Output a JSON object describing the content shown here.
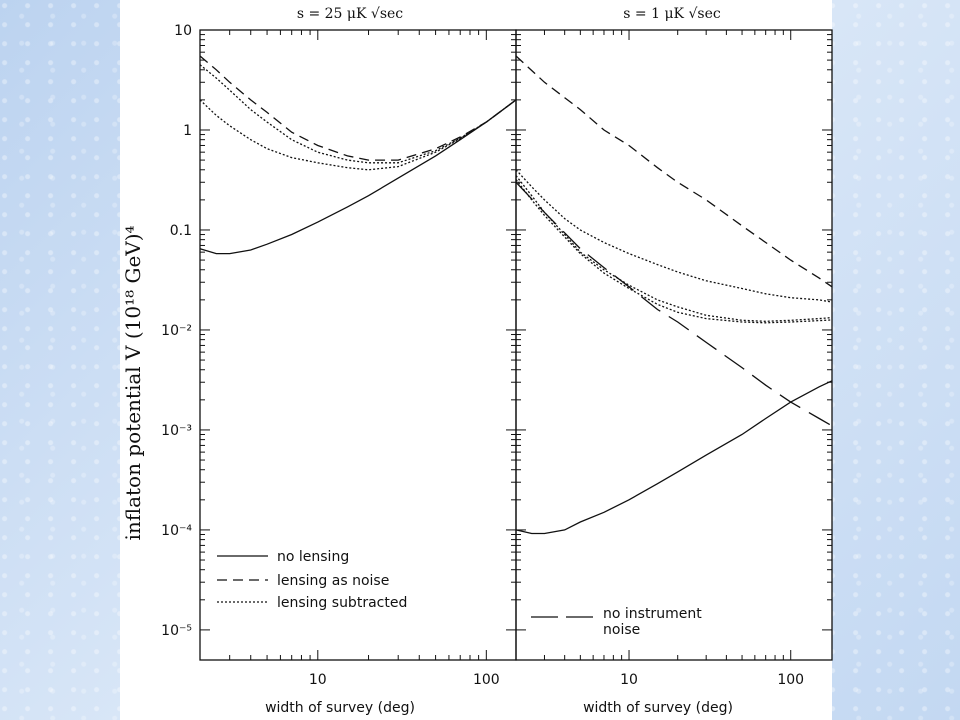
{
  "chart_data": [
    {
      "type": "line",
      "title": "s = 25 μK √sec",
      "xlabel": "width of survey (deg)",
      "ylabel": "inflaton potential V (10¹⁸ GeV)⁴",
      "xscale": "log",
      "yscale": "log",
      "xlim": [
        2,
        150
      ],
      "ylim": [
        5e-06,
        10
      ],
      "x_ticklabels": [
        "10",
        "100"
      ],
      "y_ticklabels": [
        "10",
        "1",
        "0.1",
        "10⁻²",
        "10⁻³",
        "10⁻⁴",
        "10⁻⁵"
      ],
      "legend": {
        "placement": "bottom-left",
        "entries": [
          "no lensing",
          "lensing as noise",
          "lensing subtracted"
        ]
      },
      "series": [
        {
          "name": "no lensing",
          "style": "solid",
          "x": [
            2,
            2.5,
            3,
            4,
            5,
            7,
            10,
            15,
            20,
            30,
            50,
            70,
            100,
            150
          ],
          "y": [
            0.065,
            0.058,
            0.058,
            0.063,
            0.072,
            0.09,
            0.12,
            0.17,
            0.22,
            0.33,
            0.55,
            0.8,
            1.2,
            2.0
          ]
        },
        {
          "name": "lensing as noise",
          "style": "dashed",
          "x": [
            2,
            2.5,
            3,
            4,
            5,
            7,
            10,
            15,
            20,
            30,
            50,
            70,
            100,
            150
          ],
          "y": [
            5.5,
            4.0,
            3.0,
            2.0,
            1.5,
            0.95,
            0.7,
            0.55,
            0.5,
            0.5,
            0.65,
            0.85,
            1.2,
            2.0
          ]
        },
        {
          "name": "lensing subtracted",
          "style": "dotted",
          "x": [
            2,
            2.5,
            3,
            4,
            5,
            7,
            10,
            15,
            20,
            30,
            50,
            70,
            100,
            150
          ],
          "y": [
            4.5,
            3.3,
            2.5,
            1.6,
            1.2,
            0.8,
            0.6,
            0.5,
            0.47,
            0.47,
            0.62,
            0.83,
            1.2,
            2.0
          ]
        },
        {
          "name": "lensing subtracted",
          "style": "dotted",
          "x": [
            2,
            2.5,
            3,
            4,
            5,
            7,
            10,
            15,
            20,
            30,
            50,
            70,
            100,
            150
          ],
          "y": [
            2.0,
            1.4,
            1.1,
            0.8,
            0.65,
            0.53,
            0.47,
            0.42,
            0.4,
            0.43,
            0.6,
            0.82,
            1.2,
            2.0
          ]
        }
      ]
    },
    {
      "type": "line",
      "title": "s = 1 μK √sec",
      "xlabel": "width of survey (deg)",
      "xscale": "log",
      "yscale": "log",
      "xlim": [
        2,
        180
      ],
      "ylim": [
        5e-06,
        10
      ],
      "x_ticklabels": [
        "10",
        "100"
      ],
      "annotation": {
        "placement": "bottom-left",
        "lines": [
          "no instrument",
          "noise"
        ],
        "style": "long-dashed"
      },
      "series": [
        {
          "name": "no lensing",
          "style": "solid",
          "x": [
            2,
            2.5,
            3,
            4,
            5,
            7,
            10,
            15,
            20,
            30,
            50,
            70,
            100,
            150,
            180
          ],
          "y": [
            0.0001,
            9.2e-05,
            9.2e-05,
            0.0001,
            0.00012,
            0.00015,
            0.0002,
            0.00029,
            0.00038,
            0.00056,
            0.0009,
            0.0013,
            0.0019,
            0.0027,
            0.0031
          ]
        },
        {
          "name": "lensing as noise",
          "style": "dashed",
          "x": [
            2,
            3,
            5,
            7,
            10,
            15,
            20,
            30,
            50,
            70,
            100,
            150,
            180
          ],
          "y": [
            5.5,
            3.0,
            1.6,
            1.0,
            0.7,
            0.42,
            0.3,
            0.2,
            0.11,
            0.075,
            0.05,
            0.033,
            0.027
          ]
        },
        {
          "name": "lensing subtracted",
          "style": "dotted",
          "x": [
            2,
            2.5,
            3,
            4,
            5,
            7,
            10,
            15,
            20,
            30,
            50,
            70,
            100,
            150,
            180
          ],
          "y": [
            0.4,
            0.27,
            0.2,
            0.13,
            0.1,
            0.075,
            0.058,
            0.045,
            0.038,
            0.031,
            0.026,
            0.023,
            0.021,
            0.02,
            0.019
          ]
        },
        {
          "name": "lensing subtracted",
          "style": "dotted",
          "x": [
            2,
            2.5,
            3,
            4,
            5,
            7,
            10,
            15,
            20,
            30,
            50,
            70,
            100,
            150,
            180
          ],
          "y": [
            0.35,
            0.22,
            0.15,
            0.09,
            0.06,
            0.04,
            0.028,
            0.02,
            0.017,
            0.014,
            0.0125,
            0.0122,
            0.0125,
            0.013,
            0.0133
          ]
        },
        {
          "name": "lensing subtracted",
          "style": "dotted",
          "x": [
            2,
            2.5,
            3,
            4,
            5,
            7,
            10,
            15,
            20,
            30,
            50,
            70,
            100,
            150,
            180
          ],
          "y": [
            0.32,
            0.2,
            0.14,
            0.085,
            0.058,
            0.037,
            0.026,
            0.018,
            0.015,
            0.013,
            0.012,
            0.0118,
            0.012,
            0.0124,
            0.0126
          ]
        },
        {
          "name": "no instrument noise",
          "style": "long-dashed",
          "x": [
            2,
            3,
            5,
            7,
            10,
            15,
            20,
            30,
            50,
            70,
            100,
            150,
            180
          ],
          "y": [
            0.3,
            0.15,
            0.065,
            0.042,
            0.027,
            0.016,
            0.012,
            0.0075,
            0.0042,
            0.0028,
            0.0019,
            0.0013,
            0.0011
          ]
        }
      ]
    }
  ]
}
